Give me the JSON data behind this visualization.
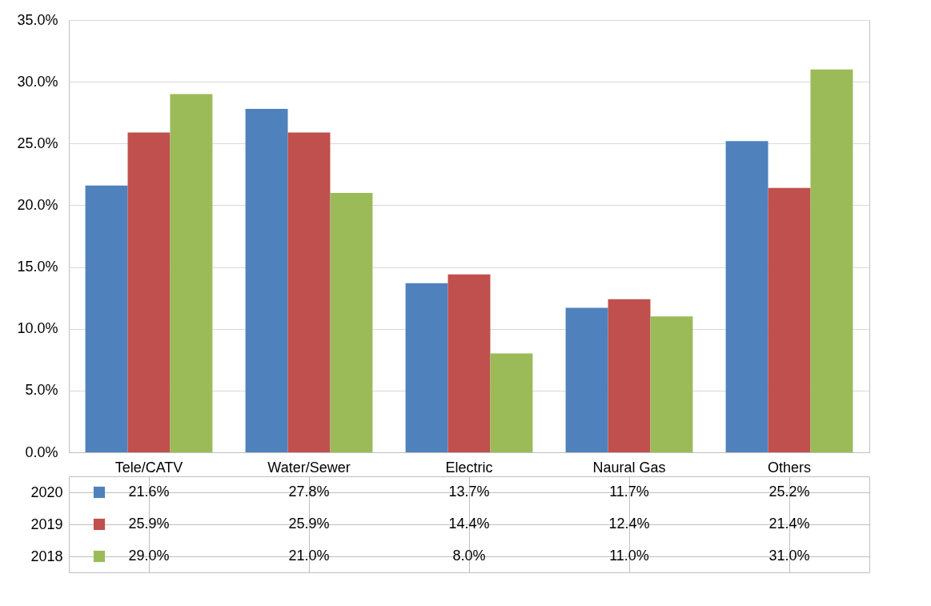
{
  "chart_data": {
    "type": "bar",
    "categories": [
      "Tele/CATV",
      "Water/Sewer",
      "Electric",
      "Naural Gas",
      "Others"
    ],
    "series": [
      {
        "name": "2020",
        "color": "#4f81bd",
        "values": [
          21.6,
          27.8,
          13.7,
          11.7,
          25.2
        ],
        "value_labels": [
          "21.6%",
          "27.8%",
          "13.7%",
          "11.7%",
          "25.2%"
        ]
      },
      {
        "name": "2019",
        "color": "#c0504d",
        "values": [
          25.9,
          25.9,
          14.4,
          12.4,
          21.4
        ],
        "value_labels": [
          "25.9%",
          "25.9%",
          "14.4%",
          "12.4%",
          "21.4%"
        ]
      },
      {
        "name": "2018",
        "color": "#9bbb59",
        "values": [
          29.0,
          21.0,
          8.0,
          11.0,
          31.0
        ],
        "value_labels": [
          "29.0%",
          "21.0%",
          "8.0%",
          "11.0%",
          "31.0%"
        ]
      }
    ],
    "ylim": [
      0,
      35
    ],
    "yticks": [
      {
        "value": 0,
        "label": "0.0%"
      },
      {
        "value": 5,
        "label": "5.0%"
      },
      {
        "value": 10,
        "label": "10.0%"
      },
      {
        "value": 15,
        "label": "15.0%"
      },
      {
        "value": 20,
        "label": "20.0%"
      },
      {
        "value": 25,
        "label": "25.0%"
      },
      {
        "value": 30,
        "label": "30.0%"
      },
      {
        "value": 35,
        "label": "35.0%"
      }
    ],
    "grid": "y",
    "legend": "bottom"
  }
}
